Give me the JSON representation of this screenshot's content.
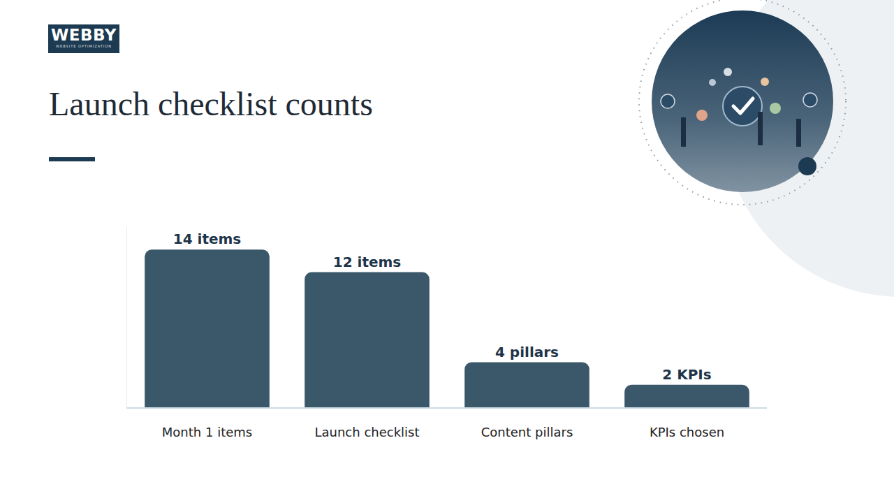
{
  "chart_data": {
    "type": "bar",
    "title": "Launch checklist counts",
    "categories": [
      "Month 1 items",
      "Launch checklist",
      "Content pillars",
      "KPIs chosen"
    ],
    "values": [
      14,
      12,
      4,
      2
    ],
    "value_labels": [
      "14 items",
      "12 items",
      "4 pillars",
      "2 KPIs"
    ],
    "color": "#3b586b",
    "ylim": [
      0,
      16
    ],
    "grid": false,
    "data_labels": true,
    "tick_labels": "x"
  },
  "logo": {
    "text": "WEBBY",
    "tagline": "WEBSITE OPTIMIZATION"
  }
}
